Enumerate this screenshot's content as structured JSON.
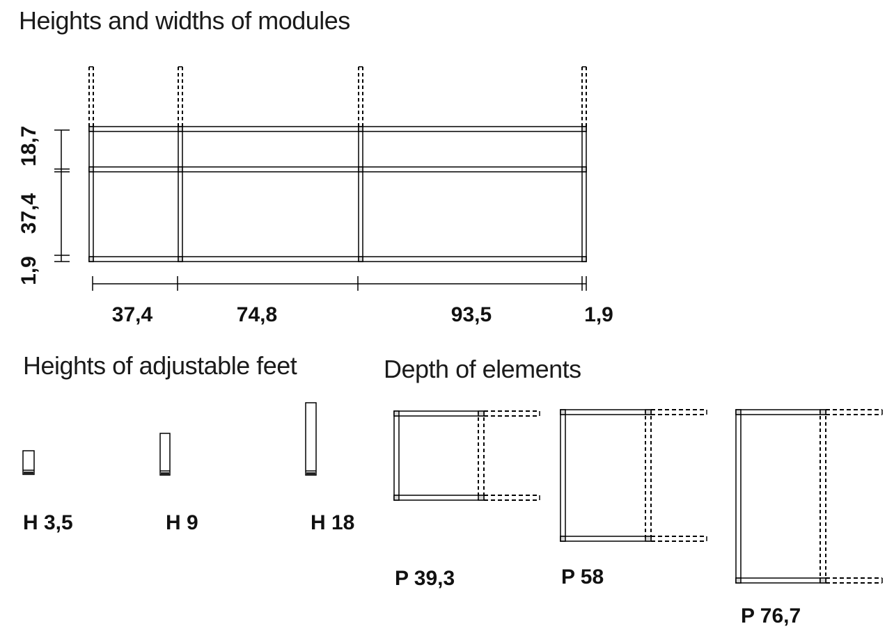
{
  "modules": {
    "title": "Heights and widths of modules",
    "heights": [
      "18,7",
      "37,4",
      "1,9"
    ],
    "widths": [
      "37,4",
      "74,8",
      "93,5",
      "1,9"
    ]
  },
  "feet": {
    "title": "Heights of adjustable feet",
    "items": [
      "H 3,5",
      "H 9",
      "H 18"
    ]
  },
  "depth": {
    "title": "Depth of elements",
    "items": [
      "P 39,3",
      "P 58",
      "P 76,7"
    ]
  },
  "colors": {
    "line": "#000000",
    "joint": "#d8d8d8"
  }
}
